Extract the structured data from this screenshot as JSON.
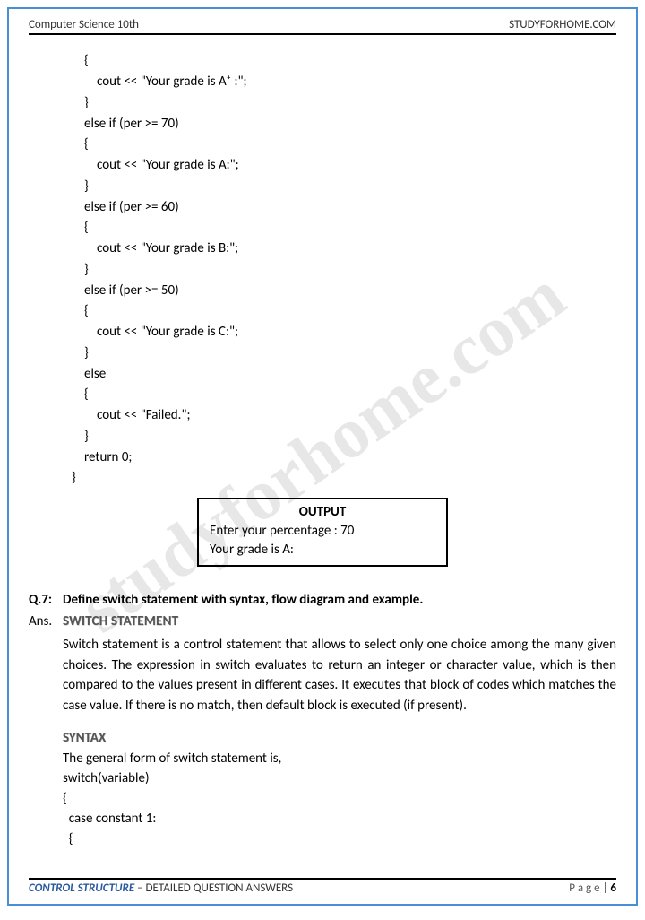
{
  "header": {
    "left": "Computer Science 10th",
    "right": "STUDYFORHOME.COM"
  },
  "watermark": "studyforhome.com",
  "code": {
    "lines": [
      {
        "indent": "l1",
        "text": "{"
      },
      {
        "indent": "l2",
        "text": "cout << \"Your grade is A⁺ :\";"
      },
      {
        "indent": "l1",
        "text": "}"
      },
      {
        "indent": "l1",
        "text": "else if (per >= 70)"
      },
      {
        "indent": "l1",
        "text": "{"
      },
      {
        "indent": "l2",
        "text": "cout << \"Your grade is A:\";"
      },
      {
        "indent": "l1",
        "text": "}"
      },
      {
        "indent": "l1",
        "text": "else if (per >= 60)"
      },
      {
        "indent": "l1",
        "text": "{"
      },
      {
        "indent": "l2",
        "text": "cout << \"Your grade is B:\";"
      },
      {
        "indent": "l1",
        "text": "}"
      },
      {
        "indent": "l1",
        "text": "else if (per >= 50)"
      },
      {
        "indent": "l1",
        "text": "{"
      },
      {
        "indent": "l2",
        "text": "cout << \"Your grade is C:\";"
      },
      {
        "indent": "l1",
        "text": "}"
      },
      {
        "indent": "l1",
        "text": "else"
      },
      {
        "indent": "l1",
        "text": "{"
      },
      {
        "indent": "l2",
        "text": "cout << \"Failed.\";"
      },
      {
        "indent": "l1",
        "text": "}"
      },
      {
        "indent": "l1",
        "text": "return 0;"
      },
      {
        "indent": "l0",
        "text": "}"
      }
    ]
  },
  "output": {
    "title": "OUTPUT",
    "line1": "Enter your percentage : 70",
    "line2": "Your grade is A:"
  },
  "question": {
    "label": "Q.7:",
    "text": "Define switch statement with syntax, flow diagram and example."
  },
  "answer": {
    "label": "Ans.",
    "title": "SWITCH STATEMENT",
    "body": "Switch statement is a control statement that allows to select only one choice among the many given choices. The expression in switch evaluates to return an integer or character value, which is then compared to the values present in different cases. It executes that block of codes which matches the case value. If there is no match, then default block is executed (if present)."
  },
  "syntax": {
    "title": "SYNTAX",
    "intro": "The general form of switch statement is,",
    "l1": "switch(variable)",
    "l2": "{",
    "l3": "  case constant 1:",
    "l4": "  {"
  },
  "footer": {
    "chapter": "CONTROL STRUCTURE",
    "rest": " – DETAILED QUESTION ANSWERS",
    "page_label": "P a g e  | ",
    "page_num": "6"
  }
}
